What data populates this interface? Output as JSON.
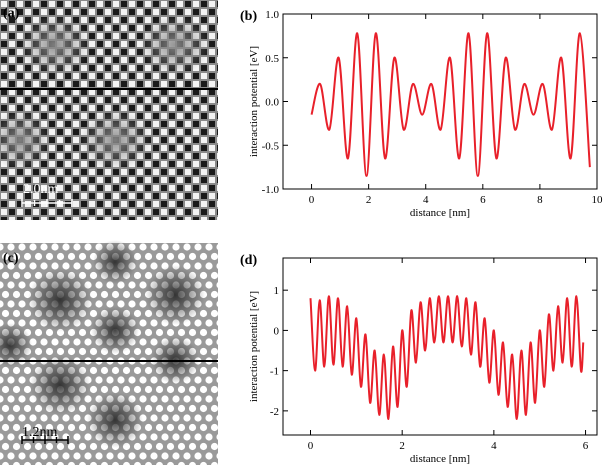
{
  "images": [
    {
      "panel_label": "(a)",
      "scale_bar": "2.0nm"
    },
    {
      "panel_label": "(c)",
      "scale_bar": "1.2nm"
    }
  ],
  "chart_data": [
    {
      "type": "line",
      "panel_label": "(b)",
      "xlabel": "distance [nm]",
      "ylabel": "interaction potential [eV]",
      "color": "#e8202a",
      "x": [
        0,
        0.3,
        0.625,
        0.95,
        1.275,
        1.6,
        1.925,
        2.25,
        2.575,
        2.9,
        3.225,
        3.55,
        3.875,
        4.2,
        4.525,
        4.85,
        5.175,
        5.5,
        5.825,
        6.15,
        6.475,
        6.8,
        7.125,
        7.45,
        7.775,
        8.1,
        8.425,
        8.75,
        9.075,
        9.4,
        9.75
      ],
      "values": [
        -0.15,
        0.2,
        -0.32,
        0.5,
        -0.65,
        0.78,
        -0.85,
        0.78,
        -0.65,
        0.5,
        -0.32,
        0.2,
        -0.15,
        0.2,
        -0.32,
        0.5,
        -0.65,
        0.78,
        -0.85,
        0.78,
        -0.65,
        0.5,
        -0.32,
        0.2,
        -0.15,
        0.2,
        -0.32,
        0.5,
        -0.65,
        0.78,
        -0.75
      ],
      "xlim": [
        -1,
        10
      ],
      "xticks": [
        0,
        2,
        4,
        6,
        8,
        10
      ],
      "ylim": [
        -1,
        1
      ],
      "yticks": [
        {
          "value": -1,
          "label": "-1.0"
        },
        -0.5,
        {
          "value": 0,
          "label": "0.0"
        },
        0.5,
        {
          "value": 1,
          "label": "1.0"
        }
      ]
    },
    {
      "type": "line",
      "panel_label": "(d)",
      "xlabel": "distance [nm]",
      "ylabel": "interaction potential [eV]",
      "color": "#e8202a",
      "x": [
        0,
        0.1,
        0.2,
        0.3,
        0.4,
        0.5,
        0.6,
        0.7,
        0.8,
        0.9,
        1.0,
        1.1,
        1.2,
        1.3,
        1.4,
        1.5,
        1.6,
        1.7,
        1.8,
        1.9,
        2.0,
        2.1,
        2.2,
        2.3,
        2.4,
        2.5,
        2.6,
        2.7,
        2.8,
        2.9,
        3.0,
        3.1,
        3.2,
        3.3,
        3.4,
        3.5,
        3.6,
        3.7,
        3.8,
        3.9,
        4.0,
        4.1,
        4.2,
        4.3,
        4.4,
        4.5,
        4.6,
        4.7,
        4.8,
        4.9,
        5.0,
        5.1,
        5.2,
        5.3,
        5.4,
        5.5,
        5.6,
        5.7,
        5.8,
        5.9,
        5.95
      ],
      "values": [
        0.8,
        -1.0,
        0.75,
        -0.9,
        0.85,
        -0.85,
        0.8,
        -0.9,
        0.6,
        -1.1,
        0.3,
        -1.4,
        -0.1,
        -1.8,
        -0.5,
        -2.1,
        -0.6,
        -2.2,
        -0.4,
        -1.9,
        0.0,
        -1.4,
        0.5,
        -0.8,
        0.7,
        -0.5,
        0.8,
        -0.3,
        0.85,
        -0.3,
        0.85,
        -0.3,
        0.85,
        -0.4,
        0.8,
        -0.6,
        0.7,
        -0.9,
        0.3,
        -1.3,
        0.0,
        -1.6,
        -0.3,
        -1.9,
        -0.6,
        -2.2,
        -0.5,
        -2.1,
        -0.3,
        -1.8,
        0.0,
        -1.4,
        0.4,
        -1.0,
        0.6,
        -0.8,
        0.8,
        -0.9,
        0.85,
        -1.0,
        -0.3
      ],
      "xlim": [
        -0.6,
        6.25
      ],
      "xticks": [
        0,
        2,
        4,
        6
      ],
      "ylim": [
        -2.6,
        1.8
      ],
      "yticks": [
        -2,
        -1,
        0,
        1
      ]
    }
  ]
}
